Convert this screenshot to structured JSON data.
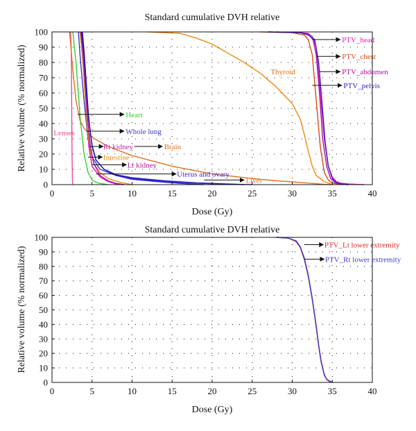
{
  "chart_data": [
    {
      "type": "line",
      "title": "Standard cumulative DVH relative",
      "xlabel": "Dose (Gy)",
      "ylabel": "Relative volume (% normalized)",
      "xlim": [
        0,
        40
      ],
      "ylim": [
        0,
        100
      ],
      "xticks": [
        "0",
        "5",
        "10",
        "15",
        "20",
        "25",
        "30",
        "35",
        "40"
      ],
      "yticks": [
        "0",
        "10",
        "20",
        "30",
        "40",
        "50",
        "60",
        "70",
        "80",
        "90",
        "100"
      ],
      "grid": "dotted",
      "series": [
        {
          "name": "PTV_head",
          "color": "#e020c8",
          "x": [
            28,
            31,
            32,
            32.5,
            33,
            33.5,
            34,
            34.5,
            35,
            35.5,
            36,
            37,
            38,
            39
          ],
          "y": [
            100,
            99.5,
            99,
            97,
            90,
            60,
            30,
            12,
            5,
            2,
            1,
            0.5,
            0.2,
            0
          ]
        },
        {
          "name": "PTV_chest",
          "color": "#d84a18",
          "x": [
            26,
            30,
            31.5,
            32,
            32.5,
            33,
            33.5,
            34,
            34.5,
            35,
            36,
            37
          ],
          "y": [
            100,
            99.5,
            98,
            95,
            85,
            55,
            25,
            8,
            3,
            1,
            0.3,
            0
          ]
        },
        {
          "name": "PTV_abdomen",
          "color": "#b0129c",
          "x": [
            27,
            31,
            32,
            32.6,
            33,
            33.4,
            33.8,
            34.3,
            34.8,
            35.3,
            36,
            37
          ],
          "y": [
            100,
            99.5,
            98.5,
            95,
            85,
            60,
            30,
            12,
            4,
            1.5,
            0.5,
            0
          ]
        },
        {
          "name": "PTV_pelvis",
          "color": "#3a18c8",
          "x": [
            27,
            31,
            32,
            32.8,
            33.3,
            33.7,
            34.1,
            34.5,
            35,
            35.5,
            36,
            37
          ],
          "y": [
            100,
            99.5,
            98,
            95,
            80,
            55,
            28,
            12,
            4,
            1.5,
            0.5,
            0
          ]
        },
        {
          "name": "Thyroid",
          "color": "#e88a10",
          "x": [
            12,
            16,
            18,
            20,
            22,
            24,
            26,
            28,
            30,
            31,
            31.5,
            32,
            32.5,
            33,
            34,
            35
          ],
          "y": [
            100,
            99,
            96,
            92,
            86,
            80,
            73,
            64,
            53,
            43,
            33,
            22,
            12,
            6,
            2,
            0
          ]
        },
        {
          "name": "Heart",
          "color": "#30d030",
          "x": [
            2.6,
            3,
            3.5,
            4,
            4.5,
            5,
            5.5,
            6,
            7
          ],
          "y": [
            100,
            80,
            45,
            20,
            8,
            3,
            1.5,
            0.8,
            0
          ]
        },
        {
          "name": "Whole lung",
          "color": "#3838d0",
          "x": [
            3.3,
            3.5,
            4,
            4.5,
            5,
            6,
            8,
            10,
            14,
            20,
            25
          ],
          "y": [
            100,
            85,
            55,
            30,
            18,
            10,
            6,
            4,
            2,
            0.5,
            0
          ]
        },
        {
          "name": "Lenses",
          "color": "#f04898",
          "x": [
            2.3,
            2.4,
            2.45,
            2.5,
            2.55,
            2.6
          ],
          "y": [
            100,
            90,
            60,
            20,
            3,
            0
          ]
        },
        {
          "name": "Rt kidney",
          "color": "#c020b0",
          "x": [
            3.5,
            3.7,
            4,
            4.3,
            4.6,
            5,
            6,
            7,
            8,
            9
          ],
          "y": [
            100,
            90,
            70,
            45,
            25,
            12,
            5,
            2,
            0.5,
            0
          ]
        },
        {
          "name": "Brain",
          "color": "#e07020",
          "x": [
            2.2,
            2.6,
            3,
            3.5,
            4,
            5,
            7,
            10,
            15,
            20,
            25,
            28,
            30,
            31,
            32,
            33,
            34,
            35
          ],
          "y": [
            100,
            75,
            55,
            42,
            37,
            31,
            25,
            19,
            12,
            7,
            4,
            2.5,
            1.8,
            1.4,
            1,
            0.6,
            0.2,
            0
          ]
        },
        {
          "name": "Intestine",
          "color": "#e88a10",
          "x": [
            3.5,
            3.8,
            4.1,
            4.4,
            4.8,
            5.2,
            6,
            7,
            8.5,
            10
          ],
          "y": [
            100,
            85,
            60,
            38,
            22,
            14,
            8,
            4,
            1.5,
            0
          ]
        },
        {
          "name": "Lt kidney",
          "color": "#b0129c",
          "x": [
            3.6,
            3.9,
            4.2,
            4.5,
            4.8,
            5.2,
            6,
            7,
            8,
            9
          ],
          "y": [
            100,
            85,
            62,
            40,
            25,
            14,
            6,
            2.5,
            0.8,
            0
          ]
        },
        {
          "name": "Uterus and ovary",
          "color": "#3a18c8",
          "x": [
            3.8,
            4,
            4.3,
            4.6,
            5,
            5.5,
            6.5,
            8,
            10,
            13,
            16,
            19
          ],
          "y": [
            100,
            88,
            65,
            42,
            26,
            16,
            10,
            6,
            3.5,
            2,
            0.8,
            0
          ]
        },
        {
          "name": "Liver",
          "color": "#1818c0",
          "x": [
            3.7,
            4,
            4.3,
            4.7,
            5,
            5.5,
            6.5,
            8,
            10,
            14,
            18,
            22,
            24
          ],
          "y": [
            100,
            85,
            60,
            38,
            25,
            16,
            10,
            6.5,
            4.5,
            2.5,
            1.2,
            0.4,
            0
          ]
        }
      ],
      "annotations": [
        {
          "text": "PTV_head",
          "color": "#e020c8",
          "arrow": [
            [
              32.5,
              95
            ],
            [
              36,
              95
            ]
          ],
          "label_at": [
            36.2,
            95
          ]
        },
        {
          "text": "PTV_chest",
          "color": "#d84a18",
          "arrow": [
            [
              33,
              84
            ],
            [
              36,
              84
            ]
          ],
          "label_at": [
            36.2,
            84
          ]
        },
        {
          "text": "PTV_abdomen",
          "color": "#b0129c",
          "arrow": [
            [
              33.4,
              74
            ],
            [
              36,
              74
            ]
          ],
          "label_at": [
            36.2,
            74
          ]
        },
        {
          "text": "PTV_pelvis",
          "color": "#3a18c8",
          "arrow": [
            [
              32.5,
              65
            ],
            [
              36.2,
              65
            ]
          ],
          "label_at": [
            36.4,
            65
          ]
        },
        {
          "text": "Thyroid",
          "color": "#e07020",
          "label_at": [
            27.3,
            74
          ]
        },
        {
          "text": "Heart",
          "color": "#30d030",
          "arrow": [
            [
              3.2,
              46
            ],
            [
              9,
              46
            ]
          ],
          "label_at": [
            9.2,
            46
          ]
        },
        {
          "text": "Whole lung",
          "color": "#3838d0",
          "arrow": [
            [
              4.3,
              35
            ],
            [
              9,
              35
            ]
          ],
          "label_at": [
            9.2,
            35
          ]
        },
        {
          "text": "Lenses",
          "color": "#f04898",
          "label_at": [
            0.2,
            34
          ]
        },
        {
          "text": "Rt kidney",
          "color": "#c020b0",
          "arrow": [
            [
              4.7,
              25
            ],
            [
              6.4,
              25
            ]
          ],
          "label_at": [
            6.4,
            25
          ]
        },
        {
          "text": "Brain",
          "color": "#e07020",
          "arrow": [
            [
              10.3,
              25
            ],
            [
              13.8,
              25
            ]
          ],
          "label_at": [
            14,
            25
          ]
        },
        {
          "text": "Intestine",
          "color": "#e88a10",
          "arrow": [
            [
              4.5,
              18
            ],
            [
              6.3,
              18
            ]
          ],
          "label_at": [
            6.4,
            18
          ]
        },
        {
          "text": "Lt kidney",
          "color": "#b0129c",
          "arrow": [
            [
              5,
              13
            ],
            [
              9.3,
              13
            ]
          ],
          "label_at": [
            9.4,
            13
          ]
        },
        {
          "text": "Uterus and ovary",
          "color": "#3a18c8",
          "arrow": [
            [
              5.5,
              7
            ],
            [
              15.5,
              7
            ]
          ],
          "label_at": [
            15.6,
            7
          ]
        },
        {
          "text": "Liver",
          "color": "#e07020",
          "arrow": [
            [
              19,
              3
            ],
            [
              24,
              3
            ]
          ],
          "label_at": [
            24.2,
            3
          ]
        }
      ]
    },
    {
      "type": "line",
      "title": "Standard cumulative DVH relative",
      "xlabel": "Dose (Gy)",
      "ylabel": "Relative volume (% normalized)",
      "xlim": [
        0,
        40
      ],
      "ylim": [
        0,
        100
      ],
      "xticks": [
        "0",
        "5",
        "10",
        "15",
        "20",
        "25",
        "30",
        "35",
        "40"
      ],
      "yticks": [
        "0",
        "10",
        "20",
        "30",
        "40",
        "50",
        "60",
        "70",
        "80",
        "90",
        "100"
      ],
      "grid": "dotted",
      "series": [
        {
          "name": "PTV_Lt lower extremity",
          "color": "#e02828",
          "x": [
            28,
            29.5,
            30.5,
            31,
            31.5,
            32,
            32.5,
            33,
            33.3,
            33.6,
            34,
            34.3,
            34.6,
            35
          ],
          "y": [
            100,
            99.5,
            97,
            93,
            85,
            73,
            57,
            38,
            25,
            14,
            5,
            2,
            0.7,
            0
          ]
        },
        {
          "name": "PTV_Rt lower extremity",
          "color": "#3a3ad0",
          "x": [
            28,
            29.5,
            30.5,
            31,
            31.5,
            32,
            32.5,
            33,
            33.3,
            33.6,
            34,
            34.3,
            34.7,
            35.1
          ],
          "y": [
            100,
            99.5,
            97.5,
            93.5,
            86,
            74,
            58,
            39,
            26,
            15,
            5.5,
            2.2,
            0.8,
            0
          ]
        }
      ],
      "annotations": [
        {
          "text": "PTV_Lt lower extremity",
          "color": "#e02828",
          "arrow": [
            [
              31.5,
              95
            ],
            [
              33.9,
              95
            ]
          ],
          "label_at": [
            34,
            95
          ]
        },
        {
          "text": "PTV_Rt lower extremity",
          "color": "#3a3ad0",
          "arrow": [
            [
              31.5,
              85
            ],
            [
              34,
              85
            ]
          ],
          "label_at": [
            34.1,
            85
          ]
        }
      ]
    }
  ]
}
